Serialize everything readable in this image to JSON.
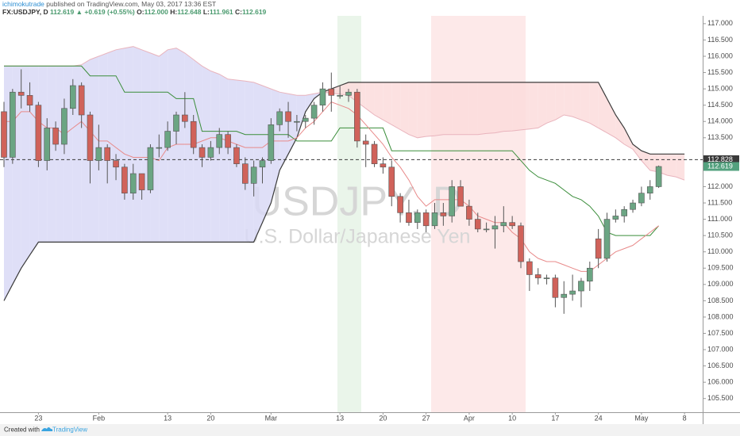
{
  "header": {
    "author": "ichimokutrade",
    "published": "published on TradingView.com, May 03, 2017 13:36 EST",
    "symbol": "FX:USDJPY, D",
    "price": "112.619",
    "change": "▲ +0.619 (+0.55%)",
    "o_label": "O:",
    "o": "112.000",
    "h_label": "H:",
    "h": "112.648",
    "l_label": "L:",
    "l": "111.961",
    "c_label": "C:",
    "c": "112.619"
  },
  "footer": {
    "created": "Created with",
    "brand": "TradingView"
  },
  "chart_data": {
    "type": "candlestick",
    "title": "USDJPY, D",
    "subtitle": "U.S. Dollar/Japanese Yen",
    "categories": [
      null,
      null,
      null,
      null,
      "23",
      null,
      null,
      null,
      null,
      null,
      null,
      "Feb",
      null,
      null,
      null,
      null,
      null,
      null,
      null,
      "13",
      null,
      null,
      null,
      null,
      "20",
      null,
      null,
      null,
      null,
      null,
      null,
      "Mar",
      null,
      null,
      null,
      null,
      null,
      null,
      null,
      "13",
      null,
      null,
      null,
      null,
      "20",
      null,
      null,
      null,
      null,
      "27",
      null,
      null,
      null,
      null,
      "Apr",
      null,
      null,
      null,
      null,
      "10",
      null,
      null,
      null,
      null,
      "17",
      null,
      null,
      null,
      null,
      "24",
      null,
      null,
      null,
      null,
      "May",
      null,
      null,
      null,
      null,
      "8"
    ],
    "open": [
      114.3,
      112.9,
      114.9,
      114.8,
      114.5,
      112.8,
      113.8,
      113.3,
      114.4,
      115.1,
      114.2,
      112.8,
      113.2,
      112.8,
      112.6,
      111.8,
      112.4,
      111.9,
      113.2,
      113.2,
      113.7,
      114.2,
      114.0,
      113.2,
      112.9,
      113.2,
      113.6,
      113.2,
      112.7,
      112.1,
      112.6,
      112.8,
      113.9,
      114.3,
      114.0,
      114.0,
      114.1,
      114.5,
      115.0,
      114.8,
      114.8,
      114.9,
      113.4,
      113.3,
      112.7,
      112.6,
      111.7,
      111.2,
      110.9,
      111.2,
      110.8,
      111.2,
      111.1,
      112.0,
      111.4,
      111.0,
      110.7,
      110.7,
      110.8,
      110.9,
      110.8,
      109.7,
      109.3,
      109.2,
      109.2,
      108.6,
      108.7,
      108.8,
      109.1,
      110.4,
      109.8,
      111.0,
      111.1,
      111.3,
      111.5,
      111.8,
      112.0,
      null,
      null,
      null
    ],
    "high": [
      114.6,
      115.0,
      115.6,
      115.2,
      114.6,
      114.1,
      114.0,
      114.7,
      115.3,
      115.2,
      114.3,
      113.9,
      113.3,
      113.0,
      112.7,
      112.7,
      112.4,
      113.3,
      113.6,
      114.0,
      114.3,
      114.9,
      114.2,
      113.3,
      113.4,
      113.8,
      113.7,
      113.3,
      112.9,
      112.8,
      112.9,
      114.1,
      114.4,
      114.6,
      114.2,
      114.2,
      114.6,
      115.2,
      115.5,
      115.1,
      115.0,
      115.0,
      113.6,
      113.4,
      112.9,
      112.8,
      111.8,
      111.6,
      111.3,
      111.3,
      111.5,
      111.5,
      112.2,
      112.2,
      111.6,
      111.2,
      110.9,
      111.1,
      111.4,
      111.1,
      110.9,
      109.8,
      109.5,
      109.3,
      109.3,
      109.1,
      109.3,
      109.2,
      109.7,
      110.7,
      111.2,
      111.3,
      111.4,
      111.6,
      112.0,
      112.2,
      112.648,
      null,
      null,
      null
    ],
    "low": [
      112.6,
      112.7,
      114.4,
      114.3,
      112.6,
      112.5,
      113.1,
      113.0,
      114.2,
      113.8,
      112.1,
      112.5,
      112.1,
      112.2,
      111.6,
      111.6,
      111.6,
      111.8,
      112.9,
      113.1,
      113.3,
      113.8,
      113.0,
      112.6,
      112.8,
      113.0,
      113.0,
      112.6,
      111.9,
      111.7,
      112.1,
      112.7,
      113.7,
      113.5,
      113.7,
      113.8,
      113.9,
      114.3,
      114.3,
      114.7,
      114.6,
      113.2,
      112.6,
      112.6,
      112.4,
      111.4,
      110.9,
      110.8,
      110.7,
      110.6,
      110.7,
      110.8,
      110.9,
      111.4,
      110.8,
      110.6,
      110.6,
      110.1,
      110.6,
      110.7,
      109.5,
      108.8,
      109.0,
      109.0,
      108.3,
      108.1,
      108.5,
      108.3,
      108.8,
      109.5,
      109.7,
      110.9,
      110.9,
      111.2,
      111.4,
      111.6,
      111.961,
      null,
      null,
      null
    ],
    "close": [
      112.9,
      114.9,
      114.8,
      114.5,
      112.8,
      113.8,
      113.3,
      114.4,
      115.1,
      114.2,
      112.8,
      113.2,
      112.8,
      112.6,
      111.8,
      112.4,
      111.9,
      113.2,
      113.2,
      113.7,
      114.2,
      114.0,
      113.2,
      112.9,
      113.2,
      113.6,
      113.2,
      112.7,
      112.1,
      112.6,
      112.8,
      113.9,
      114.3,
      114.0,
      114.0,
      114.1,
      114.5,
      115.0,
      114.8,
      114.8,
      114.9,
      113.4,
      113.3,
      112.7,
      112.6,
      111.7,
      111.2,
      110.9,
      111.2,
      110.8,
      111.2,
      111.1,
      112.0,
      111.4,
      111.0,
      110.7,
      110.7,
      110.8,
      110.9,
      110.8,
      109.7,
      109.3,
      109.2,
      109.2,
      108.6,
      108.7,
      108.8,
      109.1,
      109.5,
      109.8,
      111.0,
      111.1,
      111.3,
      111.5,
      111.8,
      112.0,
      112.619,
      null,
      null,
      null
    ],
    "up_color": "#6ba583",
    "down_color": "#d0625a",
    "cloud": {
      "up_color": "#d9d9f6",
      "down_color": "#fbdcdc",
      "span_a_color": "#e9b4bd",
      "span_b_color": "#3a3a3a",
      "span_a": [
        115.7,
        115.7,
        115.7,
        115.7,
        115.7,
        115.7,
        115.7,
        115.7,
        115.7,
        115.74,
        115.9,
        116.0,
        116.1,
        116.2,
        116.25,
        116.3,
        116.2,
        116.1,
        116.0,
        116.2,
        116.25,
        116.1,
        115.9,
        115.7,
        115.55,
        115.45,
        115.3,
        115.27,
        115.24,
        115.2,
        115.1,
        115.0,
        114.9,
        114.85,
        114.8,
        114.8,
        114.85,
        114.9,
        114.87,
        114.84,
        114.8,
        114.6,
        114.4,
        114.2,
        114.05,
        113.9,
        113.75,
        113.6,
        113.5,
        113.54,
        113.56,
        113.6,
        113.6,
        113.6,
        113.6,
        113.6,
        113.63,
        113.65,
        113.7,
        113.71,
        113.74,
        113.77,
        113.8,
        113.95,
        114.05,
        114.2,
        114.15,
        114.05,
        113.95,
        113.8,
        113.65,
        113.5,
        113.3,
        113.15,
        112.8,
        112.5,
        112.45,
        112.35,
        112.3,
        112.2
      ],
      "span_b": [
        108.5,
        109.0,
        109.5,
        109.9,
        110.3,
        110.3,
        110.3,
        110.3,
        110.3,
        110.3,
        110.3,
        110.3,
        110.3,
        110.3,
        110.3,
        110.3,
        110.3,
        110.3,
        110.3,
        110.3,
        110.3,
        110.3,
        110.3,
        110.3,
        110.3,
        110.3,
        110.3,
        110.3,
        110.3,
        110.3,
        110.9,
        111.5,
        112.5,
        113.0,
        113.5,
        114.3,
        114.7,
        114.9,
        115.0,
        115.1,
        115.2,
        115.2,
        115.2,
        115.2,
        115.2,
        115.2,
        115.2,
        115.2,
        115.2,
        115.2,
        115.2,
        115.2,
        115.2,
        115.2,
        115.2,
        115.2,
        115.2,
        115.2,
        115.2,
        115.2,
        115.2,
        115.2,
        115.2,
        115.2,
        115.2,
        115.2,
        115.2,
        115.2,
        115.2,
        115.2,
        114.7,
        114.2,
        113.8,
        113.3,
        113.1,
        113.0,
        113.0,
        113.0,
        113.0,
        113.0
      ]
    },
    "series": [
      {
        "color": "#3a8d3a",
        "values": [
          115.7,
          115.7,
          115.7,
          115.7,
          115.7,
          115.7,
          115.7,
          115.7,
          115.7,
          115.7,
          115.4,
          115.4,
          115.4,
          115.4,
          114.9,
          114.9,
          114.9,
          114.9,
          114.9,
          114.9,
          114.7,
          114.7,
          114.7,
          113.7,
          113.7,
          113.7,
          113.7,
          113.7,
          113.6,
          113.6,
          113.6,
          113.6,
          113.6,
          113.6,
          113.4,
          113.4,
          113.4,
          113.4,
          113.4,
          113.8,
          113.8,
          113.8,
          113.8,
          113.8,
          113.8,
          113.1,
          113.1,
          113.1,
          113.1,
          113.1,
          113.1,
          113.1,
          113.1,
          113.1,
          113.1,
          113.1,
          113.1,
          113.1,
          113.1,
          113.1,
          112.8,
          112.5,
          112.3,
          112.2,
          112.1,
          111.9,
          111.7,
          111.6,
          111.4,
          111.1,
          110.6,
          110.5,
          110.5,
          110.5,
          110.5,
          110.5,
          110.8,
          null,
          null,
          null
        ]
      },
      {
        "color": "#e88a8a",
        "values": [
          114.0,
          114.0,
          114.3,
          114.3,
          114.0,
          113.8,
          113.8,
          113.6,
          113.8,
          114.0,
          113.7,
          113.4,
          113.4,
          113.2,
          113.0,
          112.9,
          112.9,
          112.9,
          112.8,
          113.2,
          113.3,
          113.3,
          113.3,
          113.4,
          113.5,
          113.5,
          113.4,
          113.3,
          113.2,
          113.2,
          113.2,
          113.4,
          113.4,
          113.4,
          113.5,
          113.8,
          114.0,
          114.3,
          114.6,
          114.5,
          114.4,
          114.2,
          113.9,
          113.6,
          113.3,
          112.9,
          112.6,
          112.2,
          111.7,
          111.4,
          111.6,
          111.6,
          111.6,
          111.6,
          111.4,
          111.1,
          111.0,
          110.9,
          110.9,
          110.6,
          110.4,
          110.0,
          109.8,
          109.7,
          109.7,
          109.6,
          109.5,
          109.4,
          109.4,
          109.6,
          109.8,
          110.0,
          110.1,
          110.2,
          110.4,
          110.6,
          110.8,
          null,
          null,
          null
        ]
      }
    ],
    "price_lines": [
      {
        "value": 112.828,
        "color": "#3a3a3a"
      },
      {
        "value": 112.619,
        "color": "#53a17e"
      }
    ],
    "ylim": [
      105.08,
      117.24
    ],
    "yticks": [
      {
        "value": 105.5,
        "label": "105.500"
      },
      {
        "value": 106,
        "label": "106.000"
      },
      {
        "value": 106.5,
        "label": "106.500"
      },
      {
        "value": 107,
        "label": "107.000"
      },
      {
        "value": 107.5,
        "label": "107.500"
      },
      {
        "value": 108,
        "label": "108.000"
      },
      {
        "value": 108.5,
        "label": "108.500"
      },
      {
        "value": 109,
        "label": "109.000"
      },
      {
        "value": 109.5,
        "label": "109.500"
      },
      {
        "value": 110,
        "label": "110.000"
      },
      {
        "value": 110.5,
        "label": "110.500"
      },
      {
        "value": 111,
        "label": "111.000"
      },
      {
        "value": 111.5,
        "label": "111.500"
      },
      {
        "value": 112,
        "label": "112.000"
      },
      {
        "value": 113.5,
        "label": "113.500"
      },
      {
        "value": 114,
        "label": "114.000"
      },
      {
        "value": 114.5,
        "label": "114.500"
      },
      {
        "value": 115,
        "label": "115.000"
      },
      {
        "value": 115.5,
        "label": "115.500"
      },
      {
        "value": 116,
        "label": "116.000"
      },
      {
        "value": 116.5,
        "label": "116.500"
      },
      {
        "value": 117,
        "label": "117.000"
      }
    ]
  }
}
